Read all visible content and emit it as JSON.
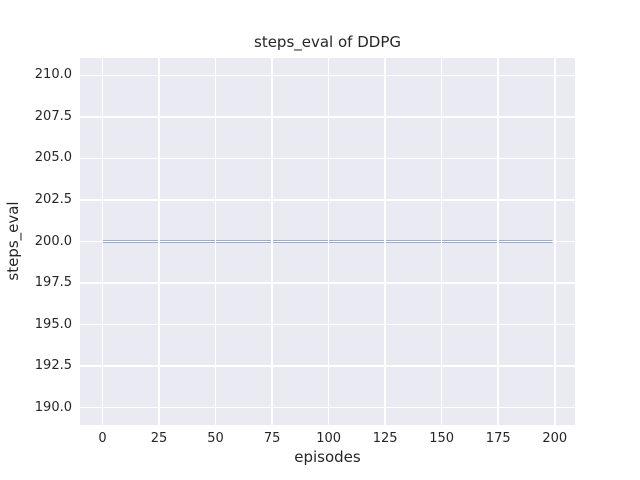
{
  "figure": {
    "background": "#ffffff",
    "text_color": "#262626"
  },
  "chart_data": {
    "type": "line",
    "title": "steps_eval of DDPG",
    "xlabel": "episodes",
    "ylabel": "steps_eval",
    "xlim": [
      -9.95,
      208.95
    ],
    "ylim": [
      188.95,
      211.05
    ],
    "xticks": [
      0,
      25,
      50,
      75,
      100,
      125,
      150,
      175,
      200
    ],
    "xtick_labels": [
      "0",
      "25",
      "50",
      "75",
      "100",
      "125",
      "150",
      "175",
      "200"
    ],
    "yticks": [
      190.0,
      192.5,
      195.0,
      197.5,
      200.0,
      202.5,
      205.0,
      207.5,
      210.0
    ],
    "ytick_labels": [
      "190.0",
      "192.5",
      "195.0",
      "197.5",
      "200.0",
      "202.5",
      "205.0",
      "207.5",
      "210.0"
    ],
    "grid": true,
    "legend": "none",
    "plot_bg": "#eaeaf2",
    "grid_color": "#ffffff",
    "series": [
      {
        "name": "DDPG",
        "color": "#4c72b0",
        "line_width": 2,
        "x": [
          0,
          199
        ],
        "y": [
          200.0,
          200.0
        ]
      }
    ]
  }
}
